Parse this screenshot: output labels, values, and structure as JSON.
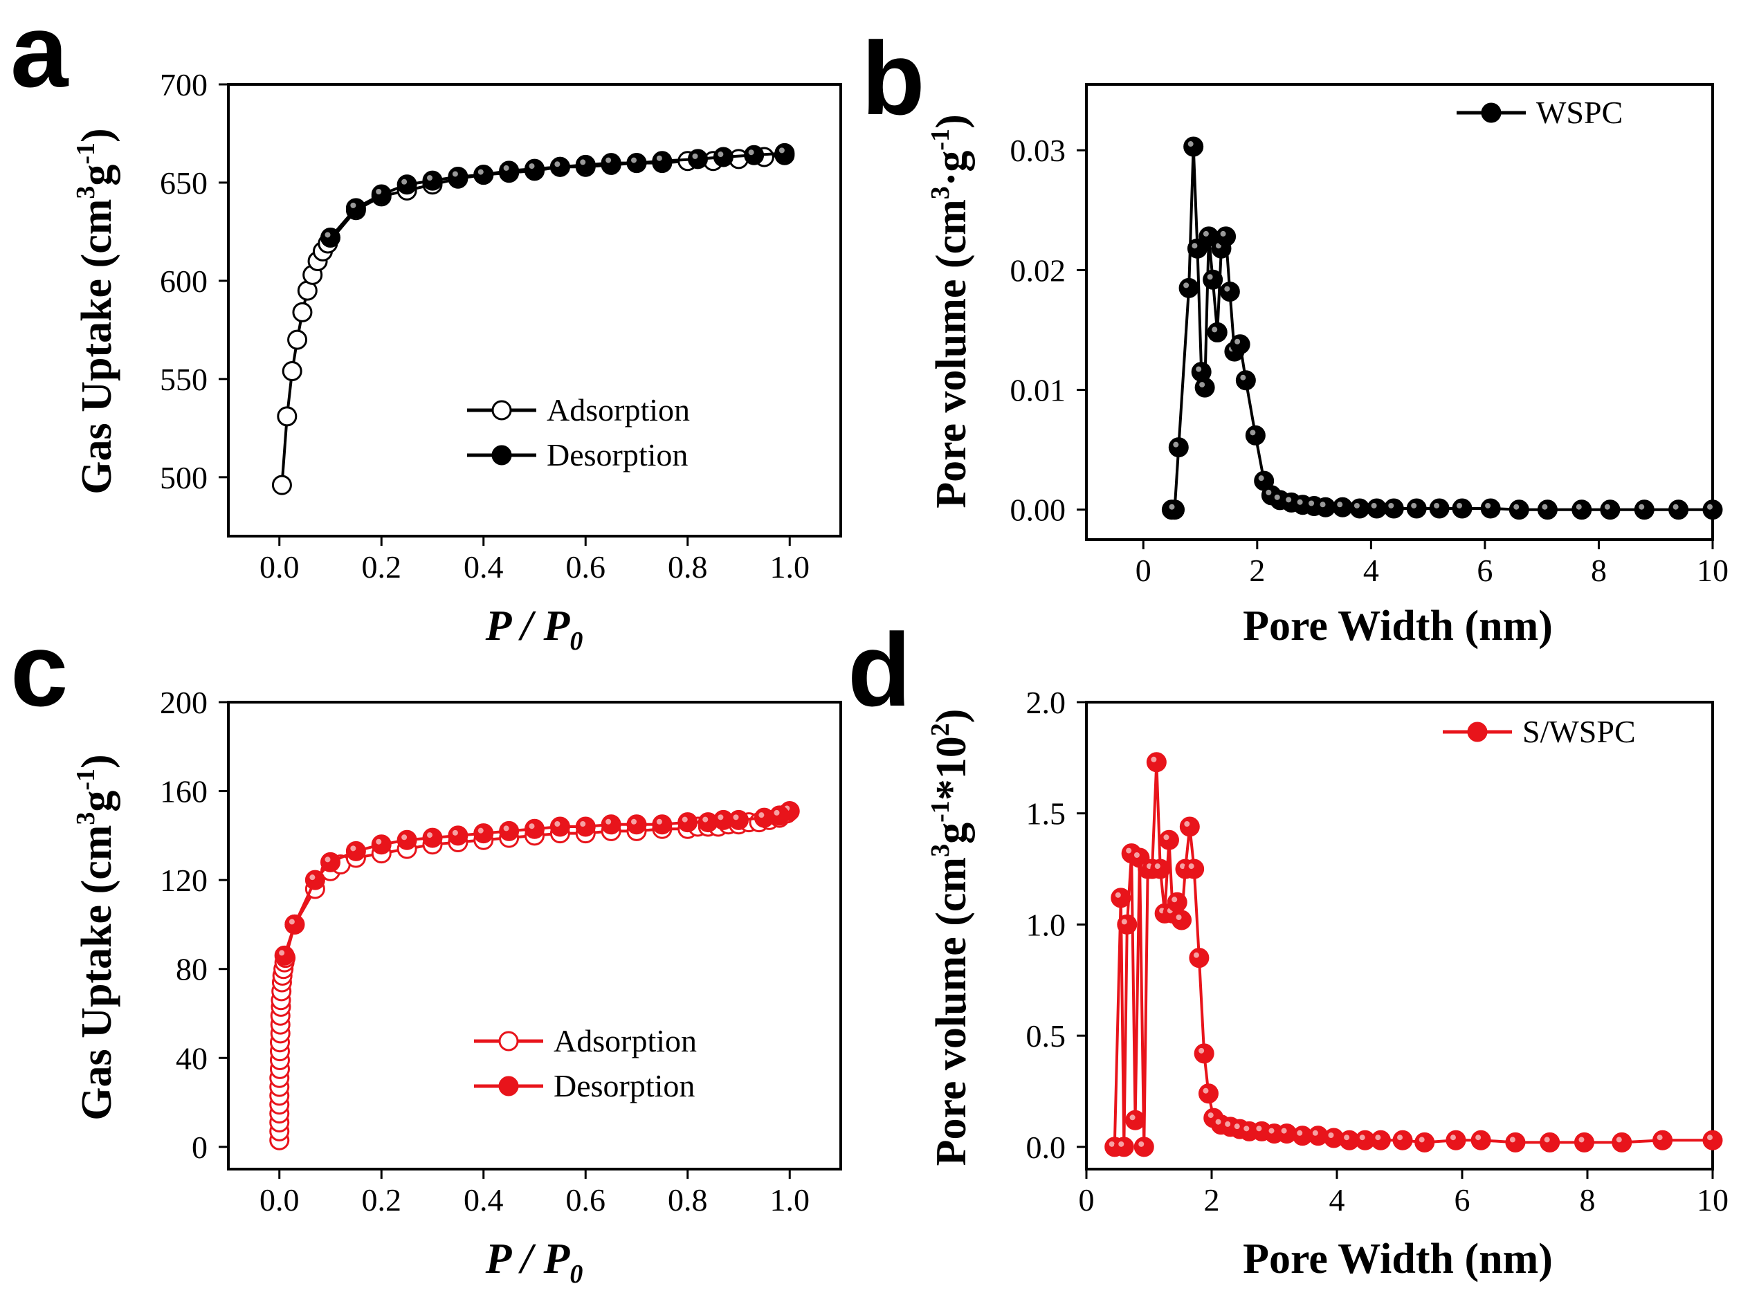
{
  "colors": {
    "black_series": "#000000",
    "red_series": "#e8141b"
  },
  "chart_data": [
    {
      "panel": "a",
      "type": "line",
      "xlabel_main": "P / P",
      "xlabel_sub": "0",
      "ylabel_main": "Gas Uptake (cm",
      "ylabel_sup": "3",
      "ylabel_mid": "g",
      "ylabel_sup2": "-1",
      "ylabel_end": ")",
      "xlim": [
        -0.1,
        1.1
      ],
      "ylim": [
        470,
        700
      ],
      "xticks": [
        0.0,
        0.2,
        0.4,
        0.6,
        0.8,
        1.0
      ],
      "xtick_labels": [
        "0.0",
        "0.2",
        "0.4",
        "0.6",
        "0.8",
        "1.0"
      ],
      "yticks": [
        500,
        550,
        600,
        650,
        700
      ],
      "ytick_labels": [
        "500",
        "550",
        "600",
        "650",
        "700"
      ],
      "legend": [
        "Adsorption",
        "Desorption"
      ],
      "series": [
        {
          "name": "Adsorption",
          "marker": "hollow",
          "color": "#000000",
          "x": [
            0.005,
            0.015,
            0.025,
            0.035,
            0.045,
            0.055,
            0.065,
            0.075,
            0.085,
            0.095,
            0.15,
            0.2,
            0.25,
            0.3,
            0.35,
            0.4,
            0.45,
            0.5,
            0.55,
            0.6,
            0.65,
            0.7,
            0.75,
            0.8,
            0.85,
            0.9,
            0.95,
            0.99
          ],
          "y": [
            496,
            531,
            554,
            570,
            584,
            595,
            603,
            610,
            615,
            619,
            636,
            643,
            646,
            649,
            652,
            654,
            655,
            656,
            658,
            658,
            659,
            660,
            660,
            661,
            661,
            662,
            663,
            664
          ]
        },
        {
          "name": "Desorption",
          "marker": "filled",
          "color": "#000000",
          "x": [
            0.99,
            0.93,
            0.87,
            0.82,
            0.75,
            0.7,
            0.65,
            0.6,
            0.55,
            0.5,
            0.45,
            0.4,
            0.35,
            0.3,
            0.25,
            0.2,
            0.15,
            0.1
          ],
          "y": [
            665,
            664,
            663,
            662,
            661,
            660,
            660,
            659,
            658,
            657,
            656,
            654,
            653,
            651,
            649,
            644,
            637,
            622
          ]
        }
      ]
    },
    {
      "panel": "b",
      "type": "line",
      "xlabel_main": "Pore Width (nm)",
      "ylabel_main": "Pore volume (cm",
      "ylabel_sup": "3",
      "ylabel_mid": "·g",
      "ylabel_sup2": "-1",
      "ylabel_end": ")",
      "xlim": [
        -1,
        10
      ],
      "ylim": [
        -0.0025,
        0.0355
      ],
      "xticks": [
        0,
        2,
        4,
        6,
        8,
        10
      ],
      "xtick_labels": [
        "0",
        "2",
        "4",
        "6",
        "8",
        "10"
      ],
      "yticks": [
        0.0,
        0.01,
        0.02,
        0.03
      ],
      "ytick_labels": [
        "0.00",
        "0.01",
        "0.02",
        "0.03"
      ],
      "legend": [
        "WSPC"
      ],
      "series": [
        {
          "name": "WSPC",
          "marker": "filled",
          "color": "#000000",
          "x": [
            0.5,
            0.55,
            0.62,
            0.8,
            0.88,
            0.95,
            1.02,
            1.08,
            1.15,
            1.22,
            1.3,
            1.37,
            1.45,
            1.52,
            1.6,
            1.7,
            1.8,
            1.97,
            2.12,
            2.25,
            2.4,
            2.6,
            2.8,
            3.0,
            3.2,
            3.5,
            3.8,
            4.1,
            4.4,
            4.8,
            5.2,
            5.6,
            6.1,
            6.6,
            7.1,
            7.7,
            8.2,
            8.8,
            9.4,
            10.0
          ],
          "y": [
            0.0,
            0.0,
            0.0052,
            0.0185,
            0.0303,
            0.0218,
            0.0115,
            0.0102,
            0.0228,
            0.0192,
            0.0148,
            0.0218,
            0.0228,
            0.0182,
            0.0132,
            0.0138,
            0.0108,
            0.0062,
            0.0024,
            0.0012,
            0.0008,
            0.0006,
            0.0004,
            0.0003,
            0.0002,
            0.0002,
            0.0001,
            0.0001,
            0.0001,
            0.0001,
            0.0001,
            0.0001,
            0.0001,
            0.0,
            0.0,
            0.0,
            0.0,
            0.0,
            0.0,
            0.0
          ]
        }
      ]
    },
    {
      "panel": "c",
      "type": "line",
      "xlabel_main": "P / P",
      "xlabel_sub": "0",
      "ylabel_main": "Gas Uptake (cm",
      "ylabel_sup": "3",
      "ylabel_mid": "g",
      "ylabel_sup2": "-1",
      "ylabel_end": ")",
      "xlim": [
        -0.1,
        1.1
      ],
      "ylim": [
        -10,
        200
      ],
      "xticks": [
        0.0,
        0.2,
        0.4,
        0.6,
        0.8,
        1.0
      ],
      "xtick_labels": [
        "0.0",
        "0.2",
        "0.4",
        "0.6",
        "0.8",
        "1.0"
      ],
      "yticks": [
        0,
        40,
        80,
        120,
        160,
        200
      ],
      "ytick_labels": [
        "0",
        "40",
        "80",
        "120",
        "160",
        "200"
      ],
      "legend": [
        "Adsorption",
        "Desorption"
      ],
      "series": [
        {
          "name": "Adsorption",
          "marker": "hollow",
          "color": "#e8141b",
          "x": [
            0.0,
            0.0,
            0.0,
            0.0,
            0.0,
            0.0,
            0.0,
            0.0,
            0.001,
            0.001,
            0.001,
            0.001,
            0.002,
            0.002,
            0.002,
            0.003,
            0.003,
            0.004,
            0.005,
            0.006,
            0.008,
            0.01,
            0.012,
            0.03,
            0.07,
            0.1,
            0.12,
            0.15,
            0.2,
            0.25,
            0.3,
            0.35,
            0.4,
            0.45,
            0.5,
            0.55,
            0.6,
            0.65,
            0.7,
            0.75,
            0.8,
            0.82,
            0.84,
            0.86,
            0.88,
            0.9,
            0.92,
            0.94,
            0.96,
            0.98,
            0.995
          ],
          "y": [
            3,
            7,
            11,
            15,
            19,
            23,
            27,
            31,
            35,
            39,
            43,
            47,
            51,
            55,
            59,
            63,
            66,
            70,
            74,
            77,
            80,
            83,
            85,
            100,
            116,
            124,
            127,
            130,
            132,
            134,
            136,
            137,
            138,
            139,
            140,
            141,
            141,
            142,
            142,
            143,
            143,
            144,
            144,
            144,
            145,
            145,
            146,
            146,
            147,
            148,
            150
          ]
        },
        {
          "name": "Desorption",
          "marker": "filled",
          "color": "#e8141b",
          "x": [
            1.0,
            0.98,
            0.95,
            0.9,
            0.87,
            0.84,
            0.8,
            0.75,
            0.7,
            0.65,
            0.6,
            0.55,
            0.5,
            0.45,
            0.4,
            0.35,
            0.3,
            0.25,
            0.2,
            0.15,
            0.1,
            0.07,
            0.03,
            0.01
          ],
          "y": [
            151,
            149,
            148,
            147,
            147,
            146,
            146,
            145,
            145,
            145,
            144,
            144,
            143,
            142,
            141,
            140,
            139,
            138,
            136,
            133,
            128,
            120,
            100,
            86
          ]
        }
      ]
    },
    {
      "panel": "d",
      "type": "line",
      "xlabel_main": "Pore Width (nm)",
      "ylabel_main": "Pore volume (cm",
      "ylabel_sup": "3",
      "ylabel_mid": "g",
      "ylabel_sup2": "-1",
      "ylabel_end": "*10",
      "ylabel_sup3": "2",
      "ylabel_close": ")",
      "xlim": [
        0,
        10
      ],
      "ylim": [
        -0.1,
        2.0
      ],
      "xticks": [
        0,
        2,
        4,
        6,
        8,
        10
      ],
      "xtick_labels": [
        "0",
        "2",
        "4",
        "6",
        "8",
        "10"
      ],
      "yticks": [
        0.0,
        0.5,
        1.0,
        1.5,
        2.0
      ],
      "ytick_labels": [
        "0.0",
        "0.5",
        "1.0",
        "1.5",
        "2.0"
      ],
      "legend": [
        "S/WSPC"
      ],
      "series": [
        {
          "name": "S/WSPC",
          "marker": "filled",
          "color": "#e8141b",
          "x": [
            0.45,
            0.55,
            0.6,
            0.65,
            0.72,
            0.78,
            0.85,
            0.92,
            0.98,
            1.05,
            1.12,
            1.18,
            1.25,
            1.32,
            1.38,
            1.45,
            1.52,
            1.58,
            1.65,
            1.72,
            1.8,
            1.88,
            1.95,
            2.03,
            2.15,
            2.3,
            2.45,
            2.6,
            2.8,
            3.0,
            3.2,
            3.45,
            3.7,
            3.95,
            4.2,
            4.45,
            4.7,
            5.05,
            5.4,
            5.9,
            6.3,
            6.85,
            7.4,
            7.95,
            8.55,
            9.2,
            10.0
          ],
          "y": [
            0.0,
            1.12,
            0.0,
            1.0,
            1.32,
            0.12,
            1.3,
            0.0,
            1.25,
            1.25,
            1.73,
            1.25,
            1.05,
            1.38,
            1.05,
            1.1,
            1.02,
            1.25,
            1.44,
            1.25,
            0.85,
            0.42,
            0.24,
            0.13,
            0.1,
            0.09,
            0.08,
            0.07,
            0.07,
            0.06,
            0.06,
            0.05,
            0.05,
            0.04,
            0.03,
            0.03,
            0.03,
            0.03,
            0.02,
            0.03,
            0.03,
            0.02,
            0.02,
            0.02,
            0.02,
            0.03,
            0.03
          ]
        }
      ]
    }
  ],
  "panels": [
    {
      "letter": "a"
    },
    {
      "letter": "b"
    },
    {
      "letter": "c"
    },
    {
      "letter": "d"
    }
  ]
}
